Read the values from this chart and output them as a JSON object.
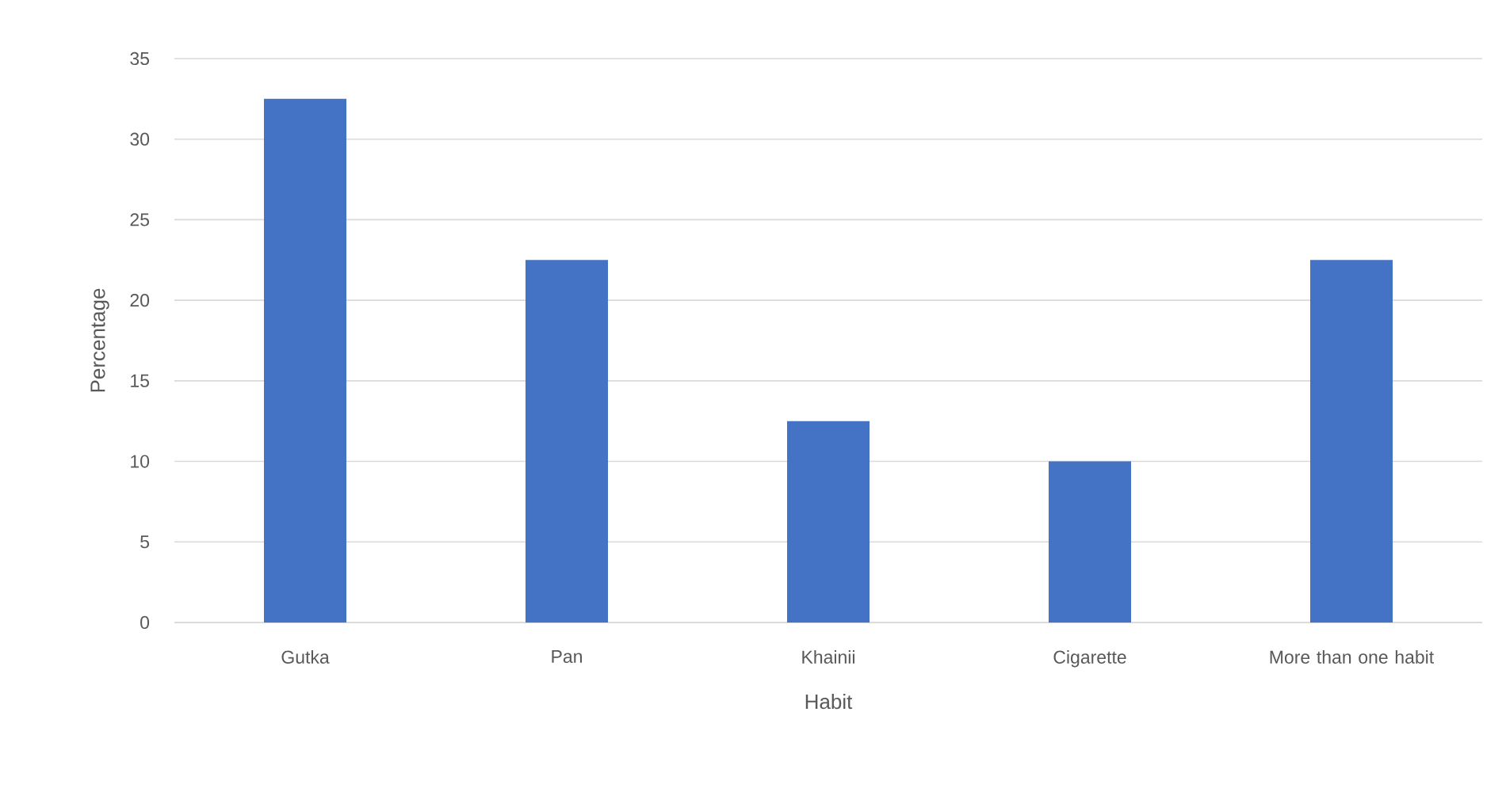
{
  "chart_data": {
    "type": "bar",
    "xlabel": "Habit",
    "ylabel": "Percentage",
    "categories": [
      "Gutka",
      "Pan",
      "Khainii",
      "Cigarette",
      "More than one habit"
    ],
    "values": [
      32.5,
      22.5,
      12.5,
      10,
      22.5
    ],
    "color": "#4472c4",
    "ylim": [
      0,
      35
    ],
    "yticks": [
      0,
      5,
      10,
      15,
      20,
      25,
      30,
      35
    ],
    "grid": "y"
  }
}
